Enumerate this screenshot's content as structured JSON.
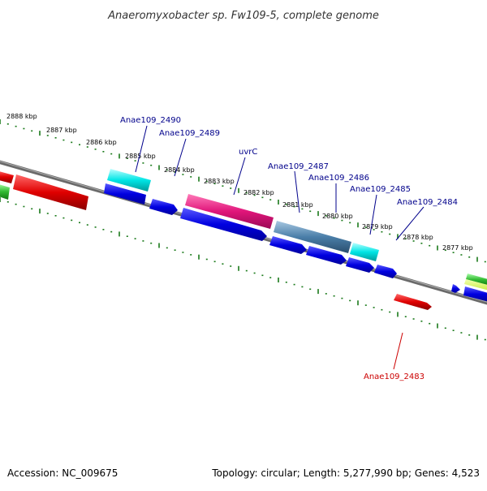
{
  "title": "Anaeromyxobacter sp. Fw109-5, complete genome",
  "footer": {
    "accession": "Accession: NC_009675",
    "summary": "Topology: circular; Length: 5,277,990 bp; Genes: 4,523"
  },
  "ticks": [
    "2888 kbp",
    "2887 kbp",
    "2886 kbp",
    "2885 kbp",
    "2884 kbp",
    "2883 kbp",
    "2882 kbp",
    "2881 kbp",
    "2880 kbp",
    "2879 kbp",
    "2878 kbp",
    "2877 kbp"
  ],
  "gene_labels": [
    {
      "text": "Anae109_2490",
      "color": "#00008b"
    },
    {
      "text": "Anae109_2489",
      "color": "#00008b"
    },
    {
      "text": "uvrC",
      "color": "#00008b"
    },
    {
      "text": "Anae109_2487",
      "color": "#00008b"
    },
    {
      "text": "Anae109_2486",
      "color": "#00008b"
    },
    {
      "text": "Anae109_2485",
      "color": "#00008b"
    },
    {
      "text": "Anae109_2484",
      "color": "#00008b"
    },
    {
      "text": "Anae109_2483",
      "color": "#cc0000"
    }
  ],
  "colors": {
    "backbone": "#7a7a7a",
    "tick": "#1a7a1a",
    "cyan": "#00e5e5",
    "blue": "#0000e0",
    "magenta": "#e0157a",
    "steel": "#4a7ea8",
    "red": "#e00000",
    "green": "#33bb33"
  }
}
